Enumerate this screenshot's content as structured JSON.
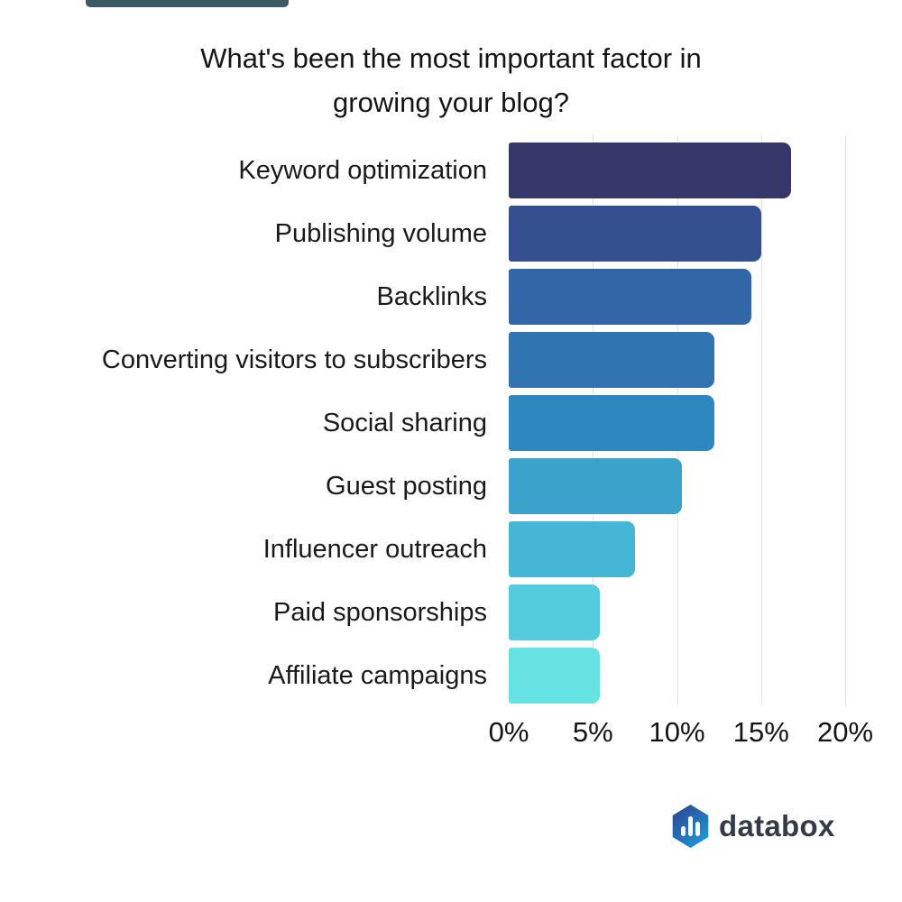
{
  "page": {
    "background": "#ffffff"
  },
  "top_remnant": {
    "color": "#3d5a64"
  },
  "chart_data": {
    "type": "bar",
    "orientation": "horizontal",
    "title": "What's been the most important factor in growing your blog?",
    "title_lines": [
      "What's been the most important factor in",
      "growing your blog?"
    ],
    "categories": [
      "Keyword optimization",
      "Publishing volume",
      "Backlinks",
      "Converting visitors to subscribers",
      "Social sharing",
      "Guest posting",
      "Influencer outreach",
      "Paid sponsorships",
      "Affiliate campaigns"
    ],
    "values": [
      16.8,
      15.0,
      14.4,
      12.2,
      12.2,
      10.3,
      7.5,
      5.4,
      5.4
    ],
    "unit": "%",
    "bar_colors": [
      "#363769",
      "#34508e",
      "#3366a7",
      "#3174b2",
      "#2e88bf",
      "#3ba2cb",
      "#46b6d6",
      "#55ccde",
      "#66e2e2"
    ],
    "x_ticks": [
      "0%",
      "5%",
      "10%",
      "15%",
      "20%"
    ],
    "x_tick_values": [
      0,
      5,
      10,
      15,
      20
    ],
    "xlim": [
      0,
      20
    ],
    "grid": true,
    "gridline_color": "#e3e3e3",
    "legend": false
  },
  "footer": {
    "brand": "databox",
    "logo_gradient_start": "#2d3d8d",
    "logo_gradient_end": "#1da3de",
    "logo_bar_color": "#ffffff",
    "wordmark_color": "#333b46"
  }
}
